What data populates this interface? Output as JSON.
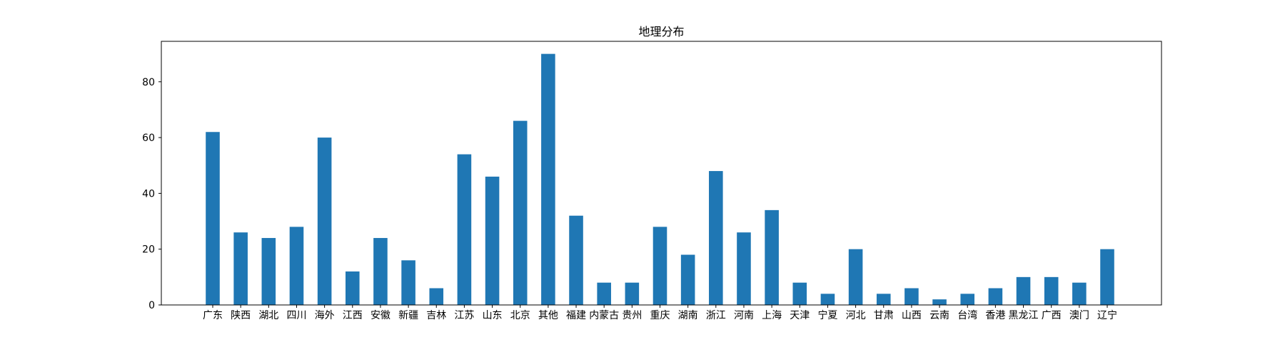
{
  "chart_data": {
    "type": "bar",
    "title": "地理分布",
    "xlabel": "",
    "ylabel": "",
    "categories": [
      "广东",
      "陕西",
      "湖北",
      "四川",
      "海外",
      "江西",
      "安徽",
      "新疆",
      "吉林",
      "江苏",
      "山东",
      "北京",
      "其他",
      "福建",
      "内蒙古",
      "贵州",
      "重庆",
      "湖南",
      "浙江",
      "河南",
      "上海",
      "天津",
      "宁夏",
      "河北",
      "甘肃",
      "山西",
      "云南",
      "台湾",
      "香港",
      "黑龙江",
      "广西",
      "澳门",
      "辽宁"
    ],
    "values": [
      62,
      26,
      24,
      28,
      60,
      12,
      24,
      16,
      6,
      54,
      46,
      66,
      90,
      32,
      8,
      8,
      28,
      18,
      48,
      26,
      34,
      8,
      4,
      20,
      4,
      6,
      2,
      4,
      6,
      10,
      10,
      8,
      20
    ],
    "ylim": [
      0,
      94.5
    ],
    "yticks": [
      0,
      20,
      40,
      60,
      80
    ],
    "grid": false,
    "bar_color": "#1f77b4"
  }
}
